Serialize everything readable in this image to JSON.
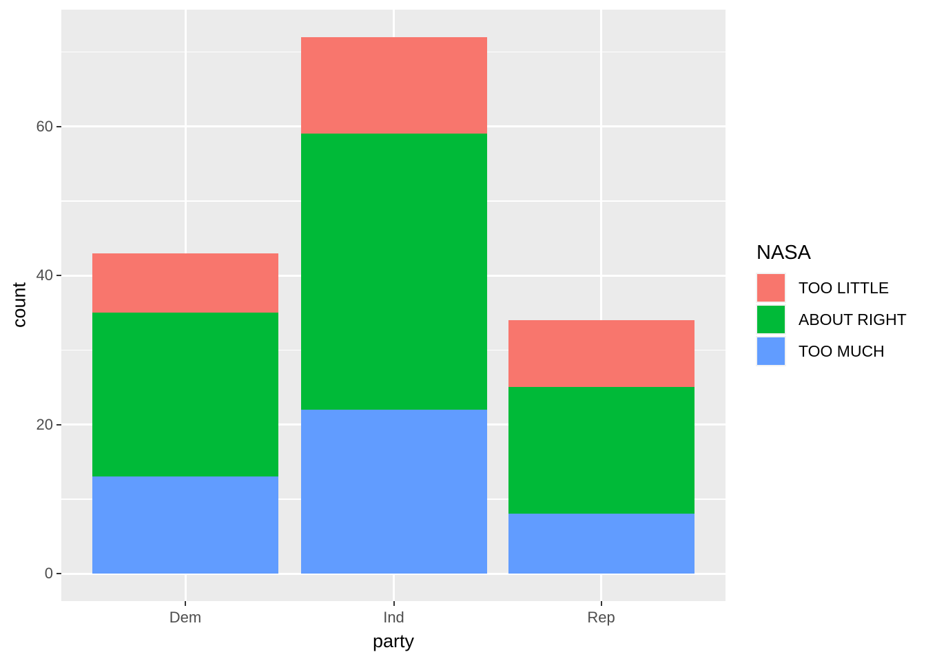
{
  "figure": {
    "background_color": "#FFFFFF",
    "panel_background_color": "#EBEBEB",
    "gridline_color": "#FFFFFF",
    "tick_mark_color": "#333333",
    "tick_label_color": "#4D4D4D",
    "axis_title_color": "#000000"
  },
  "chart_data": {
    "type": "bar",
    "stacked": true,
    "title": "",
    "xlabel": "party",
    "ylabel": "count",
    "categories": [
      "Dem",
      "Ind",
      "Rep"
    ],
    "series": [
      {
        "name": "TOO LITTLE",
        "color": "#F8766D",
        "values": [
          8,
          13,
          9
        ]
      },
      {
        "name": "ABOUT RIGHT",
        "color": "#00BA38",
        "values": [
          22,
          37,
          17
        ]
      },
      {
        "name": "TOO MUCH",
        "color": "#619CFF",
        "values": [
          13,
          22,
          8
        ]
      }
    ],
    "stack_order_bottom_to_top": [
      "TOO MUCH",
      "ABOUT RIGHT",
      "TOO LITTLE"
    ],
    "stack_totals": [
      43,
      72,
      34
    ],
    "y_ticks": [
      0,
      20,
      40,
      60
    ],
    "y_minor_ticks": [
      10,
      30,
      50,
      70
    ],
    "ylim": [
      0,
      72
    ],
    "grid": true,
    "legend": {
      "title": "NASA",
      "position": "right",
      "entries": [
        {
          "label": "TOO LITTLE",
          "color": "#F8766D"
        },
        {
          "label": "ABOUT RIGHT",
          "color": "#00BA38"
        },
        {
          "label": "TOO MUCH",
          "color": "#619CFF"
        }
      ]
    }
  }
}
